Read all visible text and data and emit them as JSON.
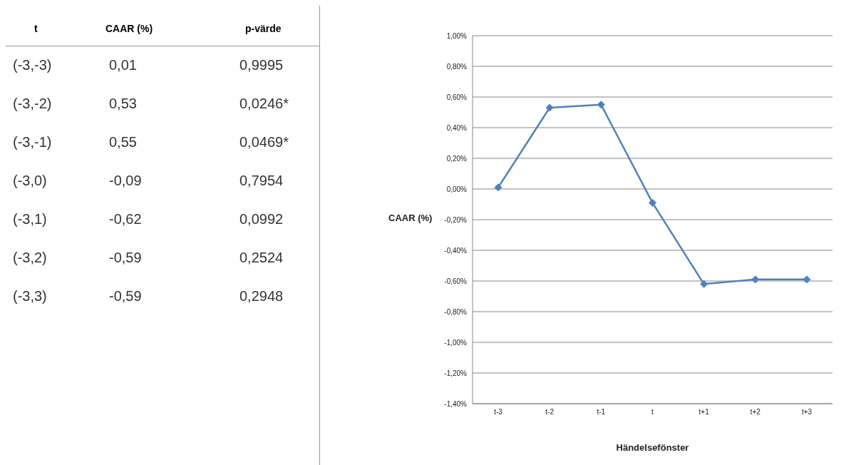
{
  "chart_data": {
    "type": "line",
    "xlabel": "Händelsefönster",
    "ylabel": "CAAR (%)",
    "categories": [
      "t-3",
      "t-2",
      "t-1",
      "t",
      "t+1",
      "t+2",
      "t+3"
    ],
    "series": [
      {
        "color": "#4f81bd",
        "values": [
          0.01,
          0.53,
          0.55,
          -0.09,
          -0.62,
          -0.59,
          -0.59
        ]
      }
    ],
    "ylim": [
      -1.4,
      1.0
    ],
    "yticks": [
      {
        "value": -1.4,
        "label": "-1,40%"
      },
      {
        "value": -1.2,
        "label": "-1,20%"
      },
      {
        "value": -1.0,
        "label": "-1,00%"
      },
      {
        "value": -0.8,
        "label": "-0,80%"
      },
      {
        "value": -0.6,
        "label": "-0,60%"
      },
      {
        "value": -0.4,
        "label": "-0,40%"
      },
      {
        "value": -0.2,
        "label": "-0,20%"
      },
      {
        "value": 0,
        "label": "0,00%"
      },
      {
        "value": 0.2,
        "label": "0,20%"
      },
      {
        "value": 0.4,
        "label": "0,40%"
      },
      {
        "value": 0.6,
        "label": "0,60%"
      },
      {
        "value": 0.8,
        "label": "0,80%"
      },
      {
        "value": 1.0,
        "label": "1,00%"
      }
    ],
    "grid": "y",
    "marker": "diamond",
    "line_style": "solid",
    "annotations": [
      "t",
      "CAAR (%)",
      "p-värde",
      "(-3,-3)",
      "0,01",
      "0,9995",
      "(-3,-2)",
      "0,53",
      "0,0246*",
      "(-3,-1)",
      "0,55",
      "0,0469*",
      "(-3,0)",
      "-0,09",
      "0,7954",
      "(-3,1)",
      "-0,62",
      "0,0992",
      "(-3,2)",
      "-0,59",
      "0,2524",
      "(-3,3)",
      "-0,59",
      "0,2948"
    ]
  }
}
